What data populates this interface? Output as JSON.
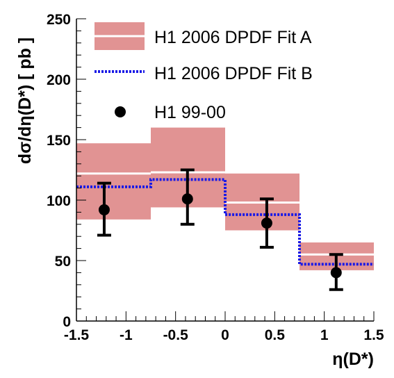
{
  "chart_data": {
    "type": "line",
    "xlabel": "η(D*)",
    "ylabel": "dσ/dη(D*) [ pb ]",
    "xlim": [
      -1.5,
      1.5
    ],
    "ylim": [
      0,
      250
    ],
    "xticks": [
      -1.5,
      -1,
      -0.5,
      0,
      0.5,
      1,
      1.5
    ],
    "xtick_labels": [
      "-1.5",
      "-1",
      "-0.5",
      "0",
      "0.5",
      "1",
      "1.5"
    ],
    "yticks": [
      0,
      50,
      100,
      150,
      200,
      250
    ],
    "ytick_labels": [
      "0",
      "50",
      "100",
      "150",
      "200",
      "250"
    ],
    "bins": [
      [
        -1.5,
        -0.75
      ],
      [
        -0.75,
        0.0
      ],
      [
        0.0,
        0.75
      ],
      [
        0.75,
        1.5
      ]
    ],
    "legend_position": "top-left",
    "series": [
      {
        "name": "H1 2006 DPDF Fit A",
        "kind": "band",
        "color": "#e19393",
        "central": [
          122,
          123,
          98,
          55
        ],
        "low": [
          84,
          94,
          75,
          42
        ],
        "high": [
          147,
          160,
          122,
          65
        ]
      },
      {
        "name": "H1 2006 DPDF Fit B",
        "kind": "step-dashed",
        "color": "#1a1ae6",
        "values": [
          111,
          117,
          88,
          47
        ]
      },
      {
        "name": "H1 99-00",
        "kind": "points",
        "color": "#000000",
        "x": [
          -1.22,
          -0.38,
          0.42,
          1.12
        ],
        "y": [
          92,
          101,
          81,
          40
        ],
        "y_low": [
          71,
          80,
          61,
          26
        ],
        "y_high": [
          114,
          125,
          101,
          55
        ]
      }
    ]
  }
}
